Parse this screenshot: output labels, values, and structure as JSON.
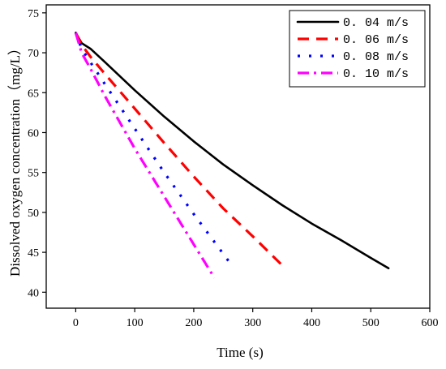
{
  "chart_data": {
    "type": "line",
    "xlabel": "Time (s)",
    "ylabel": "Dissolved oxygen concentration（mg/L）",
    "xlim": [
      -50,
      600
    ],
    "ylim": [
      38,
      76
    ],
    "xticks": [
      0,
      100,
      200,
      300,
      400,
      500,
      600
    ],
    "yticks": [
      40,
      45,
      50,
      55,
      60,
      65,
      70,
      75
    ],
    "grid": false,
    "legend_position": "top-right",
    "series": [
      {
        "name": "0. 04 m/s",
        "color": "#000000",
        "dash": "solid",
        "x": [
          0,
          10,
          25,
          50,
          100,
          150,
          200,
          250,
          300,
          350,
          400,
          450,
          500,
          530
        ],
        "y": [
          72.5,
          71.2,
          70.5,
          68.8,
          65.3,
          62.0,
          58.9,
          56.0,
          53.4,
          50.9,
          48.6,
          46.5,
          44.3,
          43.0
        ]
      },
      {
        "name": "0. 06 m/s",
        "color": "#ff0000",
        "dash": "dash",
        "x": [
          0,
          10,
          25,
          50,
          100,
          150,
          200,
          250,
          300,
          355
        ],
        "y": [
          72.5,
          71.0,
          69.5,
          67.3,
          63.0,
          58.7,
          54.5,
          50.5,
          47.0,
          43.0
        ]
      },
      {
        "name": "0. 08 m/s",
        "color": "#0000ff",
        "dash": "dot",
        "x": [
          0,
          10,
          25,
          50,
          100,
          150,
          200,
          260
        ],
        "y": [
          72.5,
          70.5,
          68.8,
          66.0,
          60.5,
          55.0,
          49.8,
          43.8
        ]
      },
      {
        "name": "0. 10 m/s",
        "color": "#ff00ff",
        "dash": "dashdot",
        "x": [
          0,
          10,
          25,
          50,
          100,
          150,
          200,
          235
        ],
        "y": [
          72.5,
          70.0,
          68.0,
          64.5,
          58.0,
          52.0,
          46.0,
          41.8
        ]
      }
    ]
  }
}
